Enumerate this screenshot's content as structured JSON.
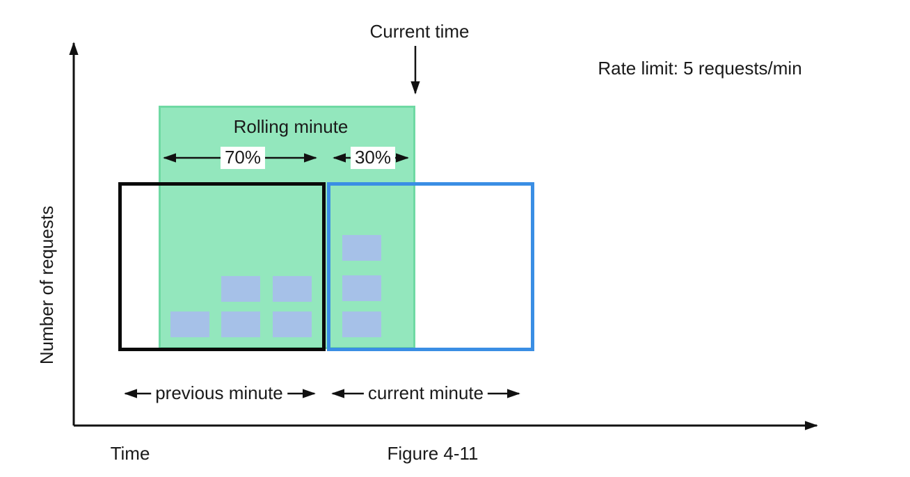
{
  "labels": {
    "current_time": "Current time",
    "rate_limit": "Rate limit: 5 requests/min",
    "rolling_minute": "Rolling minute",
    "previous_window_share": "70%",
    "current_window_share": "30%",
    "previous_minute": "previous minute",
    "current_minute": "current minute",
    "y_axis": "Number of requests",
    "x_axis": "Time",
    "caption": "Figure 4-11"
  },
  "requests": {
    "rate_limit_per_min": 5,
    "previous_minute_count": 5,
    "current_minute_count": 3
  },
  "colors": {
    "rolling_window_fill": "#93e7bd",
    "rolling_window_border": "#6fd9a3",
    "previous_window_border": "#0a0a0a",
    "current_window_border": "#3a8ee4",
    "request_block": "#a6c1e8",
    "text": "#1a1a1a",
    "arrow": "#111111"
  }
}
